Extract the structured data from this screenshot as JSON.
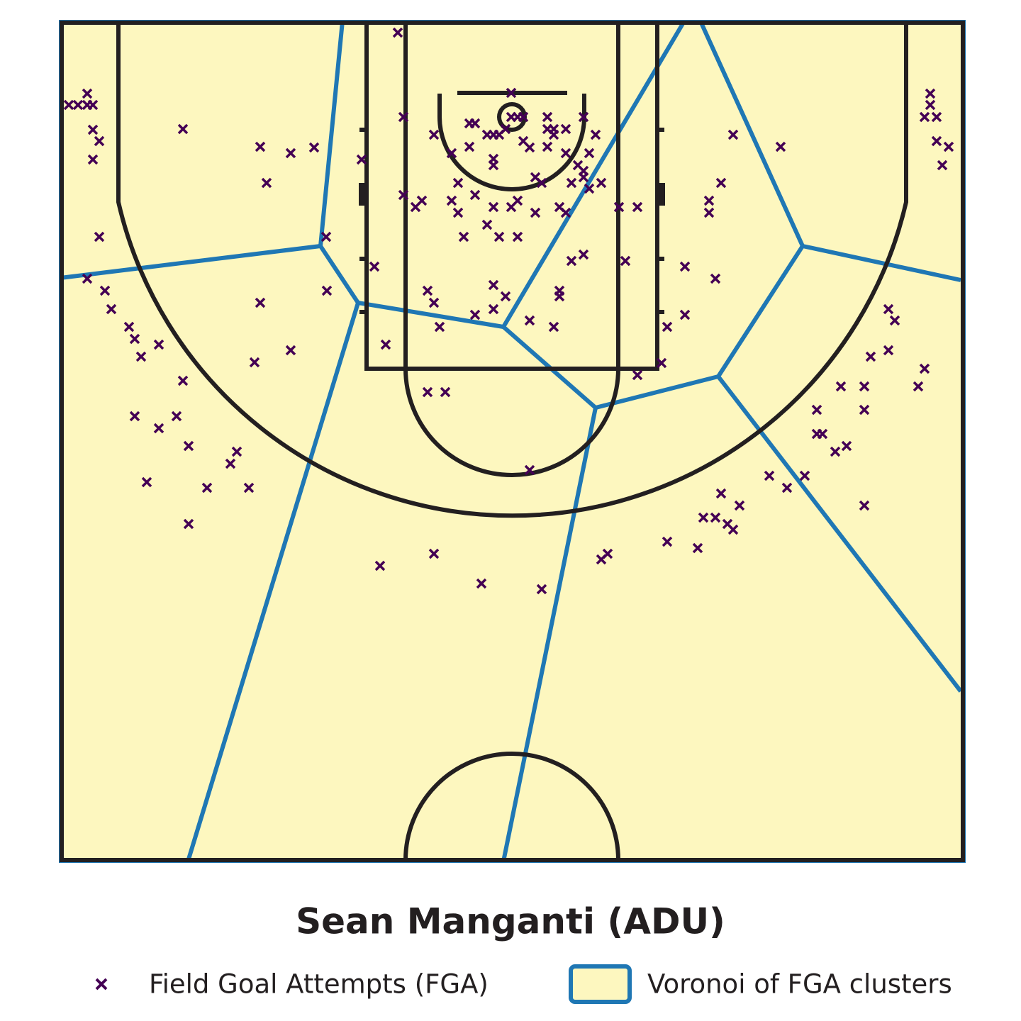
{
  "chart_data": {
    "type": "scatter",
    "title": "Sean Manganti (ADU)",
    "xlim": [
      0,
      1275
    ],
    "ylim": [
      1185,
      0
    ],
    "series": [
      {
        "name": "Field Goal Attempts (FGA)",
        "color": "#440154",
        "x": [
          12,
          25,
          38,
          38,
          46,
          46,
          55,
          46,
          55,
          38,
          63,
          72,
          97,
          105,
          114,
          139,
          173,
          173,
          282,
          325,
          358,
          291,
          375,
          376,
          282,
          325,
          274,
          105,
          164,
          139,
          181,
          249,
          240,
          122,
          207,
          266,
          181,
          451,
          527,
          594,
          679,
          763,
          772,
          856,
          899,
          907,
          924,
          932,
          941,
          949,
          958,
          1000,
          1025,
          1050,
          1134,
          1067,
          1067,
          1075,
          1093,
          1109,
          1101,
          1134,
          1134,
          1143,
          1168,
          1168,
          1177,
          1210,
          1219,
          1227,
          1227,
          1219,
          1236,
          1236,
          1253,
          1244,
          949,
          1016,
          932,
          915,
          915,
          881,
          924,
          881,
          856,
          848,
          814,
          797,
          788,
          814,
          476,
          484,
          527,
          425,
          484,
          501,
          510,
          552,
          561,
          561,
          552,
          577,
          577,
          585,
          602,
          611,
          619,
          611,
          611,
          636,
          636,
          645,
          653,
          628,
          653,
          662,
          687,
          687,
          696,
          696,
          713,
          687,
          713,
          670,
          679,
          738,
          755,
          746,
          730,
          738,
          738,
          721,
          763,
          746,
          585,
          611,
          636,
          645,
          670,
          704,
          713,
          602,
          569,
          619,
          645,
          721,
          738,
          611,
          628,
          704,
          704,
          585,
          611,
          662,
          696,
          535,
          518,
          527,
          443,
          459,
          518,
          543,
          662
        ],
        "values": [
          118,
          118,
          102,
          118,
          118,
          153,
          169,
          195,
          304,
          363,
          380,
          406,
          431,
          448,
          473,
          456,
          507,
          152,
          177,
          186,
          178,
          228,
          304,
          380,
          397,
          464,
          481,
          557,
          557,
          574,
          599,
          607,
          624,
          650,
          658,
          658,
          709,
          768,
          751,
          793,
          801,
          759,
          751,
          734,
          743,
          700,
          700,
          666,
          709,
          717,
          683,
          641,
          658,
          641,
          683,
          548,
          582,
          582,
          607,
          599,
          515,
          515,
          548,
          473,
          464,
          406,
          422,
          515,
          490,
          102,
          118,
          135,
          135,
          169,
          177,
          203,
          160,
          177,
          228,
          253,
          270,
          346,
          363,
          414,
          431,
          482,
          499,
          338,
          262,
          262,
          16,
          135,
          160,
          195,
          245,
          262,
          253,
          253,
          228,
          270,
          186,
          177,
          144,
          144,
          160,
          160,
          160,
          203,
          194,
          101,
          135,
          135,
          135,
          152,
          169,
          178,
          135,
          152,
          160,
          152,
          152,
          177,
          186,
          220,
          228,
          135,
          160,
          186,
          203,
          211,
          220,
          228,
          228,
          236,
          245,
          262,
          262,
          253,
          270,
          262,
          270,
          287,
          304,
          304,
          304,
          338,
          329,
          372,
          388,
          380,
          388,
          414,
          406,
          422,
          431,
          431,
          380,
          397,
          346,
          456,
          523,
          523,
          633
        ]
      },
      {
        "name": "Voronoi of FGA clusters",
        "color": "#1f77b4",
        "fill": "#fdf7bf",
        "edges": [
          [
            398,
            0,
            367,
            317
          ],
          [
            367,
            317,
            0,
            362
          ],
          [
            367,
            317,
            420,
            397
          ],
          [
            420,
            397,
            625,
            431
          ],
          [
            420,
            397,
            180,
            1185
          ],
          [
            625,
            431,
            880,
            0
          ],
          [
            625,
            431,
            755,
            545
          ],
          [
            755,
            545,
            928,
            501
          ],
          [
            755,
            545,
            625,
            1185
          ],
          [
            928,
            501,
            1047,
            317
          ],
          [
            928,
            501,
            1270,
            945
          ],
          [
            1047,
            317,
            903,
            0
          ],
          [
            1047,
            317,
            1270,
            365
          ]
        ]
      }
    ]
  }
}
